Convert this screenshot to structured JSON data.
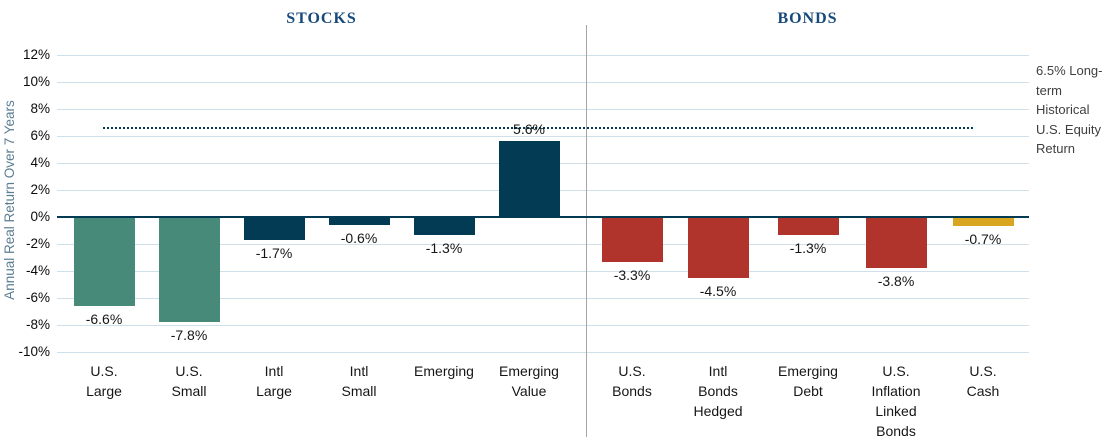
{
  "chart_data": {
    "type": "bar",
    "ylabel": "Annual Real Return Over 7 Years",
    "ylim": [
      -10,
      12
    ],
    "grid": true,
    "yticks": [
      {
        "label": "12%",
        "value": 12
      },
      {
        "label": "10%",
        "value": 10
      },
      {
        "label": "8%",
        "value": 8
      },
      {
        "label": "6%",
        "value": 6
      },
      {
        "label": "4%",
        "value": 4
      },
      {
        "label": "2%",
        "value": 2
      },
      {
        "label": "0%",
        "value": 0
      },
      {
        "label": "-2%",
        "value": -2
      },
      {
        "label": "-4%",
        "value": -4
      },
      {
        "label": "-6%",
        "value": -6
      },
      {
        "label": "-8%",
        "value": -8
      },
      {
        "label": "-10%",
        "value": -10
      }
    ],
    "palette": {
      "teal": "#478A79",
      "navy": "#043B54",
      "red": "#B0332C",
      "gold": "#D8A620",
      "grid": "#CFE0EA",
      "axis": "#043B54",
      "divider": "#A6A6A6",
      "section_title": "#17497B",
      "y_axis_title": "#5C7E93"
    },
    "reference_line": {
      "value": 6.5,
      "style": "dotted",
      "color": "#043B54",
      "label": "6.5% Long-term Historical U.S. Equity Return"
    },
    "sections": [
      {
        "title": "STOCKS",
        "bars": [
          {
            "category": "U.S. Large",
            "label_lines": [
              "U.S.",
              "Large"
            ],
            "value": -6.6,
            "value_label": "-6.6%",
            "color_key": "teal"
          },
          {
            "category": "U.S. Small",
            "label_lines": [
              "U.S.",
              "Small"
            ],
            "value": -7.8,
            "value_label": "-7.8%",
            "color_key": "teal"
          },
          {
            "category": "Intl Large",
            "label_lines": [
              "Intl",
              "Large"
            ],
            "value": -1.7,
            "value_label": "-1.7%",
            "color_key": "navy"
          },
          {
            "category": "Intl Small",
            "label_lines": [
              "Intl",
              "Small"
            ],
            "value": -0.6,
            "value_label": "-0.6%",
            "color_key": "navy"
          },
          {
            "category": "Emerging",
            "label_lines": [
              "Emerging"
            ],
            "value": -1.3,
            "value_label": "-1.3%",
            "color_key": "navy"
          },
          {
            "category": "Emerging Value",
            "label_lines": [
              "Emerging",
              "Value"
            ],
            "value": 5.6,
            "value_label": "5.6%",
            "color_key": "navy"
          }
        ]
      },
      {
        "title": "BONDS",
        "bars": [
          {
            "category": "U.S. Bonds",
            "label_lines": [
              "U.S.",
              "Bonds"
            ],
            "value": -3.3,
            "value_label": "-3.3%",
            "color_key": "red"
          },
          {
            "category": "Intl Bonds Hedged",
            "label_lines": [
              "Intl",
              "Bonds",
              "Hedged"
            ],
            "value": -4.5,
            "value_label": "-4.5%",
            "color_key": "red"
          },
          {
            "category": "Emerging Debt",
            "label_lines": [
              "Emerging",
              "Debt"
            ],
            "value": -1.3,
            "value_label": "-1.3%",
            "color_key": "red"
          },
          {
            "category": "U.S. Inflation Linked Bonds",
            "label_lines": [
              "U.S.",
              "Inflation",
              "Linked",
              "Bonds"
            ],
            "value": -3.8,
            "value_label": "-3.8%",
            "color_key": "red"
          },
          {
            "category": "U.S. Cash",
            "label_lines": [
              "U.S.",
              "Cash"
            ],
            "value": -0.7,
            "value_label": "-0.7%",
            "color_key": "gold"
          }
        ]
      }
    ]
  }
}
